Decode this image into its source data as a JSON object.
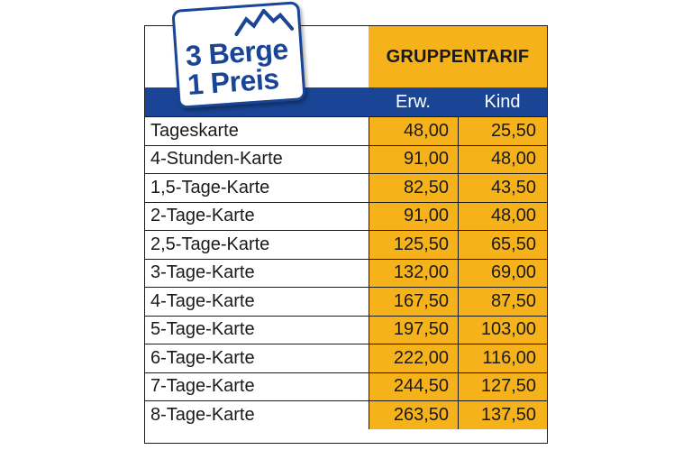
{
  "logo": {
    "line1": "3 Berge",
    "line2": "1 Preis",
    "icon": "mountains-icon"
  },
  "header": {
    "title": "GRUPPENTARIF",
    "col_erw": "Erw.",
    "col_kind": "Kind"
  },
  "colors": {
    "gold": "#f6b21b",
    "blue": "#1a4596",
    "border": "#1a1a1a"
  },
  "rows": [
    {
      "label": "Tageskarte",
      "erw": "48,00",
      "kind": "25,50"
    },
    {
      "label": "4-Stunden-Karte",
      "erw": "91,00",
      "kind": "48,00"
    },
    {
      "label": "1,5-Tage-Karte",
      "erw": "82,50",
      "kind": "43,50"
    },
    {
      "label": "2-Tage-Karte",
      "erw": "91,00",
      "kind": "48,00"
    },
    {
      "label": "2,5-Tage-Karte",
      "erw": "125,50",
      "kind": "65,50"
    },
    {
      "label": "3-Tage-Karte",
      "erw": "132,00",
      "kind": "69,00"
    },
    {
      "label": "4-Tage-Karte",
      "erw": "167,50",
      "kind": "87,50"
    },
    {
      "label": "5-Tage-Karte",
      "erw": "197,50",
      "kind": "103,00"
    },
    {
      "label": "6-Tage-Karte",
      "erw": "222,00",
      "kind": "116,00"
    },
    {
      "label": "7-Tage-Karte",
      "erw": "244,50",
      "kind": "127,50"
    },
    {
      "label": "8-Tage-Karte",
      "erw": "263,50",
      "kind": "137,50"
    }
  ]
}
